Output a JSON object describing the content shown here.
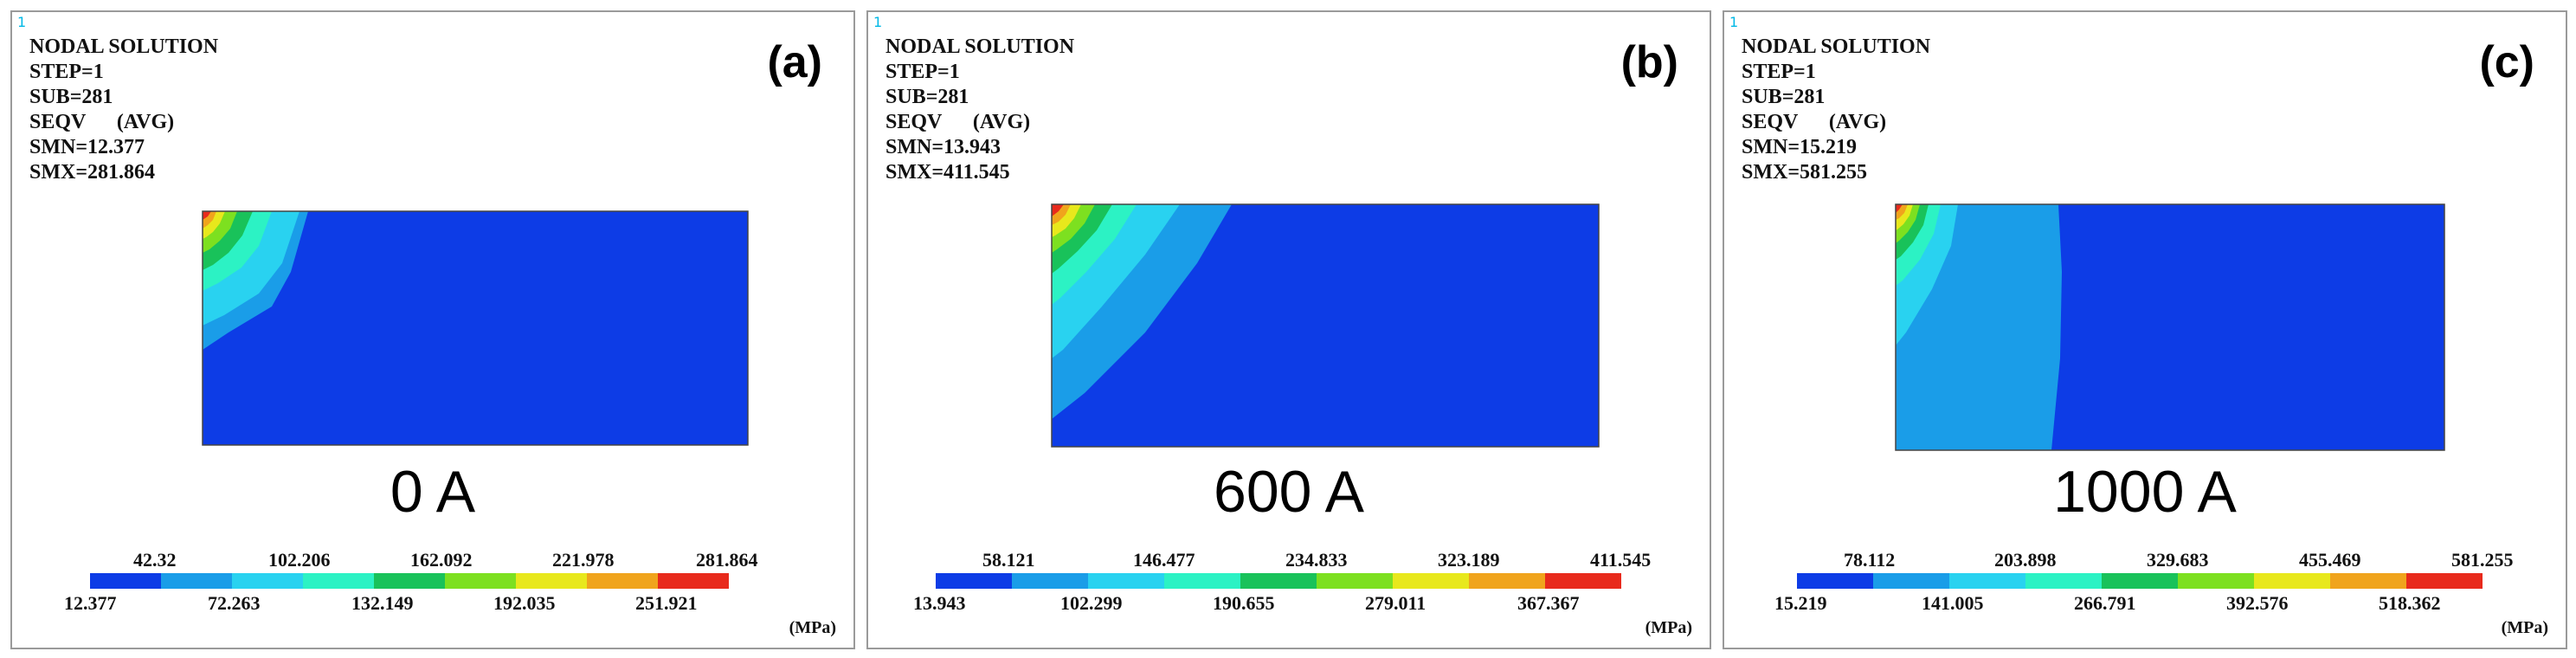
{
  "panels": [
    {
      "window_number": "1",
      "title": "NODAL SOLUTION",
      "step": "STEP=1",
      "sub": "SUB=281",
      "seqv": "SEQV      (AVG)",
      "smn": "SMN=12.377",
      "smx": "SMX=281.864",
      "label": "(a)",
      "current": "0 A",
      "legend_top": [
        "42.32",
        "102.206",
        "162.092",
        "221.978",
        "281.864"
      ],
      "legend_bottom": [
        "12.377",
        "72.263",
        "132.149",
        "192.035",
        "251.921"
      ],
      "unit": "(MPa)"
    },
    {
      "window_number": "1",
      "title": "NODAL SOLUTION",
      "step": "STEP=1",
      "sub": "SUB=281",
      "seqv": "SEQV      (AVG)",
      "smn": "SMN=13.943",
      "smx": "SMX=411.545",
      "label": "(b)",
      "current": "600 A",
      "legend_top": [
        "58.121",
        "146.477",
        "234.833",
        "323.189",
        "411.545"
      ],
      "legend_bottom": [
        "13.943",
        "102.299",
        "190.655",
        "279.011",
        "367.367"
      ],
      "unit": "(MPa)"
    },
    {
      "window_number": "1",
      "title": "NODAL SOLUTION",
      "step": "STEP=1",
      "sub": "SUB=281",
      "seqv": "SEQV      (AVG)",
      "smn": "SMN=15.219",
      "smx": "SMX=581.255",
      "label": "(c)",
      "current": "1000 A",
      "legend_top": [
        "78.112",
        "203.898",
        "329.683",
        "455.469",
        "581.255"
      ],
      "legend_bottom": [
        "15.219",
        "141.005",
        "266.791",
        "392.576",
        "518.362"
      ],
      "unit": "(MPa)"
    }
  ],
  "colors": {
    "contour": [
      "#0d3ce6",
      "#1a9de8",
      "#29d2f0",
      "#2cf2c4",
      "#19c25a",
      "#7de020",
      "#e8e81c",
      "#f0a41c",
      "#e82a1c"
    ]
  }
}
